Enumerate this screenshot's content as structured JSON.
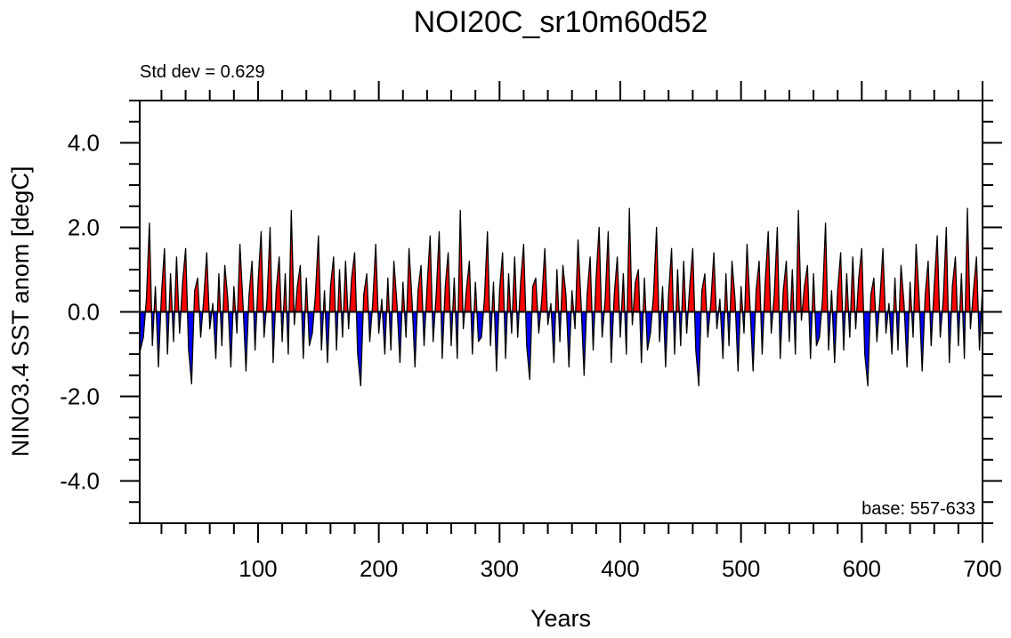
{
  "chart_data": {
    "type": "area",
    "title": "NOI20C_sr10m60d52",
    "subtitle_left": "Std dev = 0.629",
    "annotation": "base: 557-633",
    "xlabel": "Years",
    "ylabel": "NINO3.4 SST anom [degC]",
    "xlim": [
      2,
      700
    ],
    "ylim": [
      -5,
      5
    ],
    "x_ticks": [
      100,
      200,
      300,
      400,
      500,
      600,
      700
    ],
    "y_ticks": [
      -4,
      -2,
      0,
      2,
      4
    ],
    "y_tick_labels": [
      "-4.0",
      "-2.0",
      "0.0",
      "2.0",
      "4.0"
    ],
    "grid": false,
    "colors": {
      "positive": "#ff0000",
      "negative": "#0000ff",
      "line": "#000000"
    },
    "x_start": 2.5,
    "x_step": 2.5,
    "values": [
      -0.9,
      -0.6,
      0.3,
      2.1,
      -0.8,
      0.6,
      -1.3,
      0.4,
      1.5,
      -1.0,
      0.9,
      -0.7,
      1.3,
      -0.5,
      0.7,
      1.5,
      -0.9,
      -1.7,
      0.5,
      0.8,
      -0.6,
      0.3,
      1.4,
      -0.4,
      0.2,
      -1.1,
      0.9,
      -0.8,
      1.1,
      0.3,
      -1.3,
      0.6,
      -0.5,
      1.6,
      0.2,
      -1.4,
      0.4,
      1.2,
      -0.9,
      0.7,
      1.9,
      -0.6,
      0.3,
      2.0,
      -1.2,
      0.5,
      1.3,
      -0.7,
      0.9,
      -1.0,
      2.4,
      -0.3,
      0.6,
      1.1,
      -1.1,
      0.8,
      -0.8,
      -0.5,
      0.4,
      1.8,
      -0.9,
      0.5,
      -1.2,
      0.6,
      1.3,
      -0.9,
      1.0,
      -0.6,
      1.2,
      -0.4,
      0.8,
      1.4,
      -1.0,
      -1.75,
      0.4,
      0.9,
      -0.7,
      0.2,
      1.6,
      -0.5,
      0.3,
      -1.0,
      0.8,
      -0.9,
      1.2,
      0.2,
      -1.2,
      0.7,
      -0.6,
      1.5,
      0.3,
      -1.3,
      0.5,
      1.1,
      -0.8,
      0.6,
      1.8,
      -0.7,
      0.4,
      1.9,
      -1.1,
      0.6,
      1.4,
      -0.8,
      0.8,
      -1.1,
      2.4,
      -0.4,
      0.5,
      1.2,
      -1.0,
      0.7,
      -0.7,
      -0.6,
      0.3,
      1.9,
      -0.8,
      0.7,
      -1.4,
      0.5,
      1.4,
      -1.1,
      0.9,
      -0.5,
      1.3,
      -0.6,
      0.7,
      1.6,
      -0.8,
      -1.6,
      0.6,
      0.8,
      -0.5,
      0.3,
      1.5,
      -0.3,
      0.2,
      -1.2,
      1.0,
      -0.7,
      1.1,
      0.4,
      -1.3,
      0.5,
      -0.4,
      1.7,
      0.2,
      -1.5,
      0.4,
      1.3,
      -0.9,
      0.8,
      2.0,
      -0.6,
      0.3,
      1.9,
      -1.2,
      0.4,
      1.3,
      -0.6,
      0.9,
      -1.0,
      2.45,
      -0.3,
      0.7,
      1.0,
      -1.2,
      0.8,
      -0.9,
      -0.5,
      0.4,
      2.0,
      -0.7,
      0.6,
      -1.3,
      0.4,
      1.5,
      -1.0,
      1.0,
      -0.8,
      1.2,
      -0.5,
      0.6,
      1.5,
      -0.9,
      -1.75,
      0.5,
      0.9,
      -0.6,
      0.2,
      1.4,
      -0.4,
      0.3,
      -1.1,
      0.9,
      -0.8,
      1.2,
      0.3,
      -1.4,
      0.6,
      -0.5,
      1.6,
      0.1,
      -1.4,
      0.5,
      1.2,
      -1.0,
      0.7,
      1.9,
      -0.5,
      0.4,
      2.0,
      -1.1,
      0.5,
      1.2,
      -0.7,
      1.0,
      -1.0,
      2.4,
      -0.2,
      0.6,
      1.1,
      -1.1,
      0.9,
      -0.8,
      -0.6,
      0.3,
      2.1,
      -0.9,
      0.5,
      -1.2,
      0.5,
      1.4,
      -0.9,
      0.9,
      -0.6,
      1.3,
      -0.4,
      0.8,
      1.5,
      -1.0,
      -1.75,
      0.4,
      0.8,
      -0.7,
      0.3,
      1.5,
      -0.5,
      0.2,
      -1.0,
      0.8,
      -0.9,
      1.1,
      0.2,
      -1.3,
      0.7,
      -0.6,
      1.6,
      0.3,
      -1.4,
      0.4,
      1.2,
      -0.8,
      0.6,
      1.8,
      -0.6,
      0.3,
      2.0,
      -1.2,
      0.6,
      1.3,
      -0.8,
      0.9,
      -1.1,
      2.45,
      -0.4,
      0.5,
      1.3,
      -0.9,
      0.6
    ]
  }
}
